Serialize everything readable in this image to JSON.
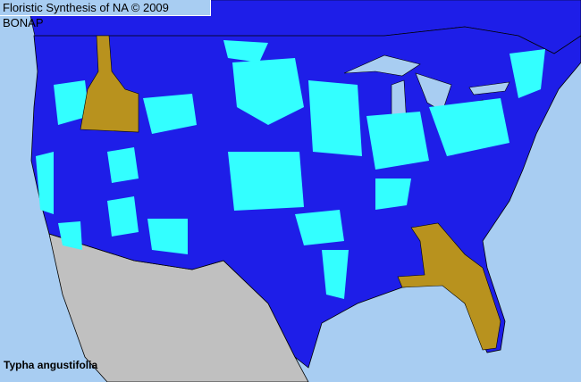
{
  "header": {
    "title": "Floristic Synthesis of NA © 2009 BONAP"
  },
  "map": {
    "species": "Typha angustifolia",
    "colors": {
      "ocean": "#a8cdf2",
      "present": "#1e1ee8",
      "cyan_counties": "#33ffff",
      "gold_states": "#b8921e",
      "mexico": "#c0c0c0",
      "borders": "#000000"
    }
  }
}
